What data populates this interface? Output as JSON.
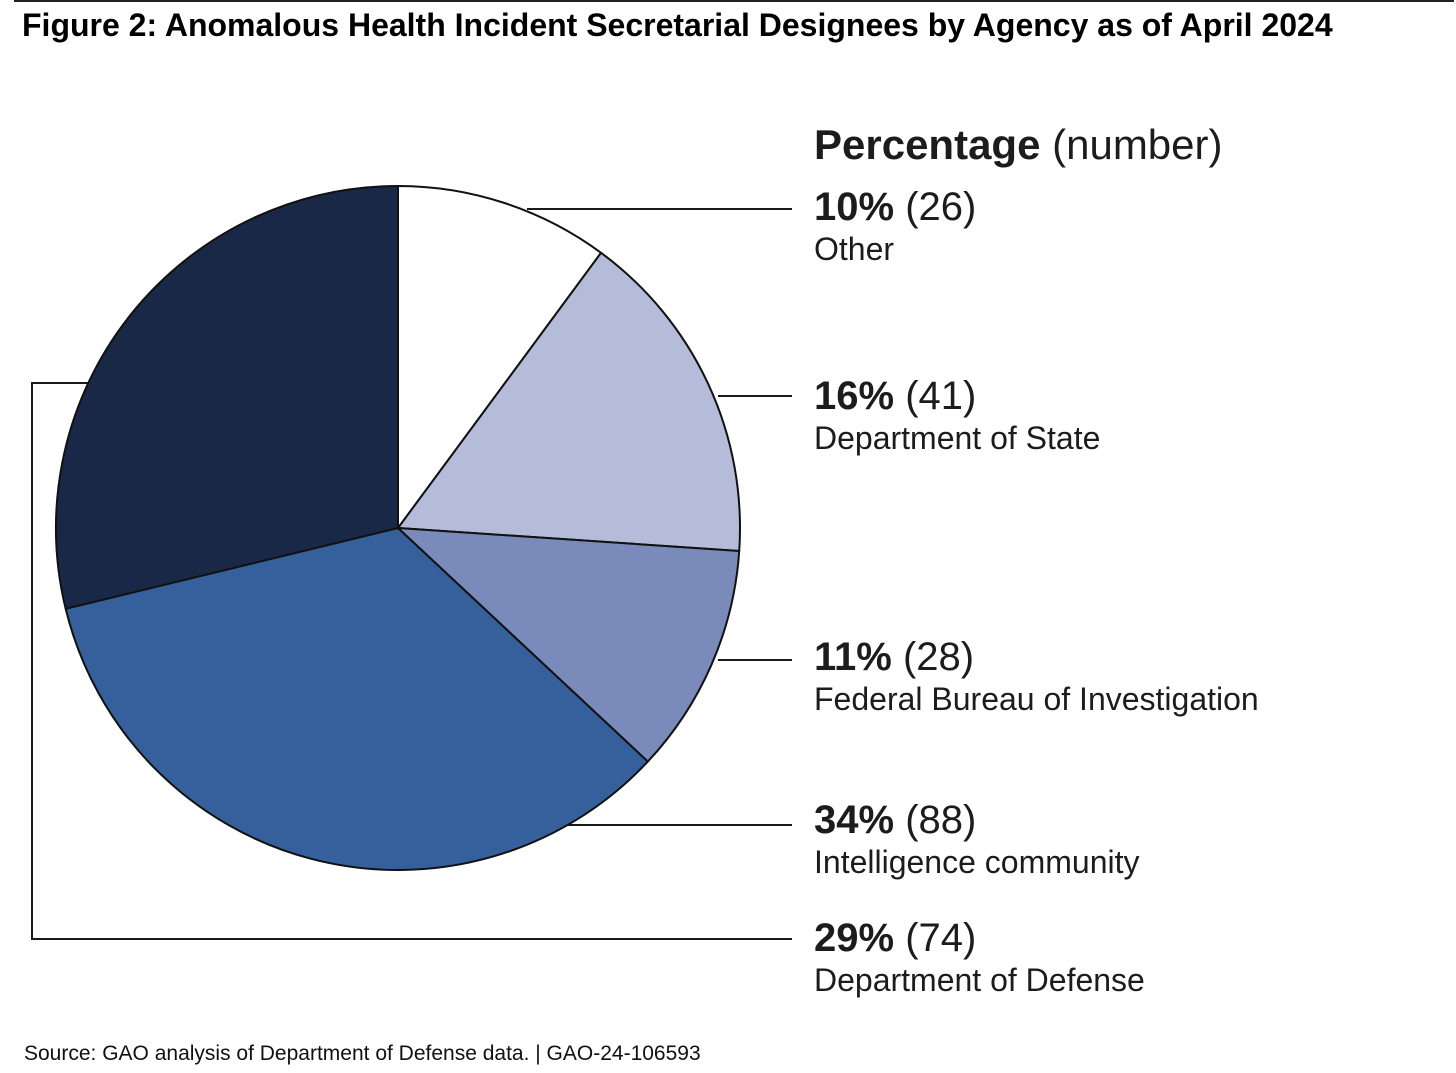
{
  "figure": {
    "title": "Figure 2: Anomalous Health Incident Secretarial Designees by Agency as of April 2024",
    "source": "Source: GAO analysis of Department of Defense data.  |  GAO-24-106593"
  },
  "legend": {
    "header_bold": "Percentage",
    "header_rest": " (number)"
  },
  "chart_data": {
    "type": "pie",
    "start": "12 o'clock",
    "direction": "clockwise",
    "slices": [
      {
        "label": "Other",
        "percent": "10%",
        "count": "(26)",
        "value": 26,
        "color": "#ffffff"
      },
      {
        "label": "Department of State",
        "percent": "16%",
        "count": "(41)",
        "value": 41,
        "color": "#b5bcd9"
      },
      {
        "label": "Federal Bureau of Investigation",
        "percent": "11%",
        "count": "(28)",
        "value": 28,
        "color": "#7a8bbb"
      },
      {
        "label": "Intelligence community",
        "percent": "34%",
        "count": "(88)",
        "value": 88,
        "color": "#35609b"
      },
      {
        "label": "Department of Defense",
        "percent": "29%",
        "count": "(74)",
        "value": 74,
        "color": "#1a2847"
      }
    ]
  }
}
